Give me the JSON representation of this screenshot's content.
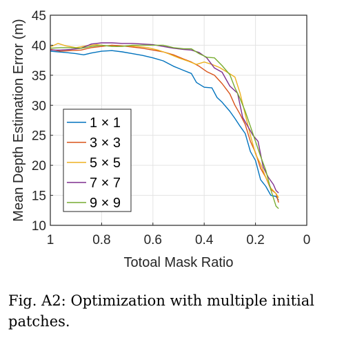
{
  "chart_data": {
    "type": "line",
    "xlabel": "Totoal Mask Ratio",
    "ylabel": "Mean Depth Estimation Error (m)",
    "xlim": [
      0,
      1
    ],
    "x_reversed": true,
    "ylim": [
      10,
      45
    ],
    "xticks": [
      1,
      0.8,
      0.6,
      0.4,
      0.2,
      0
    ],
    "xtick_labels": [
      "1",
      "0.8",
      "0.6",
      "0.4",
      "0.2",
      "0"
    ],
    "yticks": [
      10,
      15,
      20,
      25,
      30,
      35,
      40,
      45
    ],
    "ytick_labels": [
      "10",
      "15",
      "20",
      "25",
      "30",
      "35",
      "40",
      "45"
    ],
    "grid": true,
    "legend_position": "lower-left",
    "series": [
      {
        "name": "1 × 1",
        "color": "#0072BD",
        "x": [
          1.0,
          0.97,
          0.94,
          0.9,
          0.87,
          0.84,
          0.8,
          0.76,
          0.72,
          0.68,
          0.64,
          0.6,
          0.56,
          0.52,
          0.48,
          0.45,
          0.43,
          0.4,
          0.37,
          0.35,
          0.33,
          0.3,
          0.28,
          0.26,
          0.24,
          0.22,
          0.2,
          0.18,
          0.16,
          0.14,
          0.12,
          0.11
        ],
        "y": [
          39.0,
          38.9,
          38.8,
          38.6,
          38.4,
          38.7,
          39.0,
          39.1,
          38.9,
          38.6,
          38.3,
          37.9,
          37.4,
          36.5,
          35.8,
          35.3,
          33.8,
          33.0,
          32.9,
          31.3,
          30.5,
          29.0,
          27.8,
          26.5,
          25.3,
          22.3,
          20.8,
          17.6,
          16.5,
          15.0,
          14.8,
          14.2
        ]
      },
      {
        "name": "3 × 3",
        "color": "#D95319",
        "x": [
          1.0,
          0.96,
          0.92,
          0.88,
          0.84,
          0.8,
          0.76,
          0.72,
          0.68,
          0.64,
          0.6,
          0.56,
          0.52,
          0.48,
          0.45,
          0.42,
          0.39,
          0.36,
          0.33,
          0.3,
          0.28,
          0.26,
          0.24,
          0.22,
          0.2,
          0.18,
          0.16,
          0.14,
          0.12,
          0.11
        ],
        "y": [
          39.3,
          39.0,
          39.1,
          39.2,
          39.6,
          39.8,
          40.0,
          39.9,
          39.7,
          39.5,
          39.2,
          38.9,
          38.4,
          37.7,
          37.2,
          36.5,
          35.6,
          35.0,
          33.6,
          31.9,
          30.0,
          28.5,
          26.8,
          24.0,
          22.1,
          19.5,
          18.0,
          16.0,
          15.3,
          13.8
        ]
      },
      {
        "name": "5 × 5",
        "color": "#EDB120",
        "x": [
          1.0,
          0.97,
          0.94,
          0.9,
          0.86,
          0.82,
          0.78,
          0.74,
          0.7,
          0.66,
          0.62,
          0.58,
          0.54,
          0.5,
          0.46,
          0.43,
          0.4,
          0.37,
          0.34,
          0.31,
          0.28,
          0.26,
          0.24,
          0.22,
          0.2,
          0.18,
          0.16,
          0.14,
          0.12,
          0.11
        ],
        "y": [
          39.7,
          40.3,
          39.9,
          39.6,
          39.9,
          40.1,
          39.9,
          39.8,
          39.9,
          39.8,
          39.6,
          39.2,
          38.6,
          37.9,
          37.3,
          36.8,
          37.2,
          36.8,
          36.3,
          35.5,
          34.7,
          32.0,
          28.5,
          25.0,
          21.9,
          20.2,
          18.0,
          16.2,
          15.3,
          14.6
        ]
      },
      {
        "name": "7 × 7",
        "color": "#7E2F8E",
        "x": [
          1.0,
          0.96,
          0.92,
          0.88,
          0.84,
          0.8,
          0.76,
          0.72,
          0.68,
          0.64,
          0.6,
          0.56,
          0.52,
          0.48,
          0.45,
          0.42,
          0.39,
          0.36,
          0.33,
          0.3,
          0.27,
          0.25,
          0.23,
          0.21,
          0.19,
          0.17,
          0.15,
          0.13,
          0.12,
          0.11
        ],
        "y": [
          39.2,
          39.2,
          39.3,
          39.5,
          40.2,
          40.4,
          40.4,
          40.3,
          40.3,
          40.2,
          40.1,
          39.8,
          39.5,
          39.3,
          39.2,
          38.8,
          37.9,
          36.2,
          35.5,
          33.2,
          32.0,
          28.0,
          26.5,
          25.0,
          24.0,
          19.7,
          18.0,
          16.8,
          15.8,
          15.4
        ]
      },
      {
        "name": "9 × 9",
        "color": "#77AC30",
        "x": [
          1.0,
          0.96,
          0.92,
          0.88,
          0.84,
          0.8,
          0.76,
          0.72,
          0.68,
          0.64,
          0.6,
          0.56,
          0.52,
          0.48,
          0.45,
          0.42,
          0.39,
          0.36,
          0.33,
          0.3,
          0.28,
          0.26,
          0.24,
          0.22,
          0.2,
          0.18,
          0.16,
          0.14,
          0.12,
          0.11
        ],
        "y": [
          39.5,
          39.6,
          39.6,
          39.5,
          39.8,
          40.0,
          39.8,
          39.8,
          40.0,
          40.0,
          40.0,
          40.0,
          39.6,
          39.4,
          39.4,
          38.6,
          38.0,
          37.9,
          36.6,
          35.1,
          32.9,
          31.1,
          29.0,
          26.5,
          24.0,
          21.5,
          19.2,
          15.9,
          13.2,
          12.8
        ]
      }
    ]
  },
  "caption": {
    "text": "Fig. A2: Optimization with multiple initial patches."
  }
}
